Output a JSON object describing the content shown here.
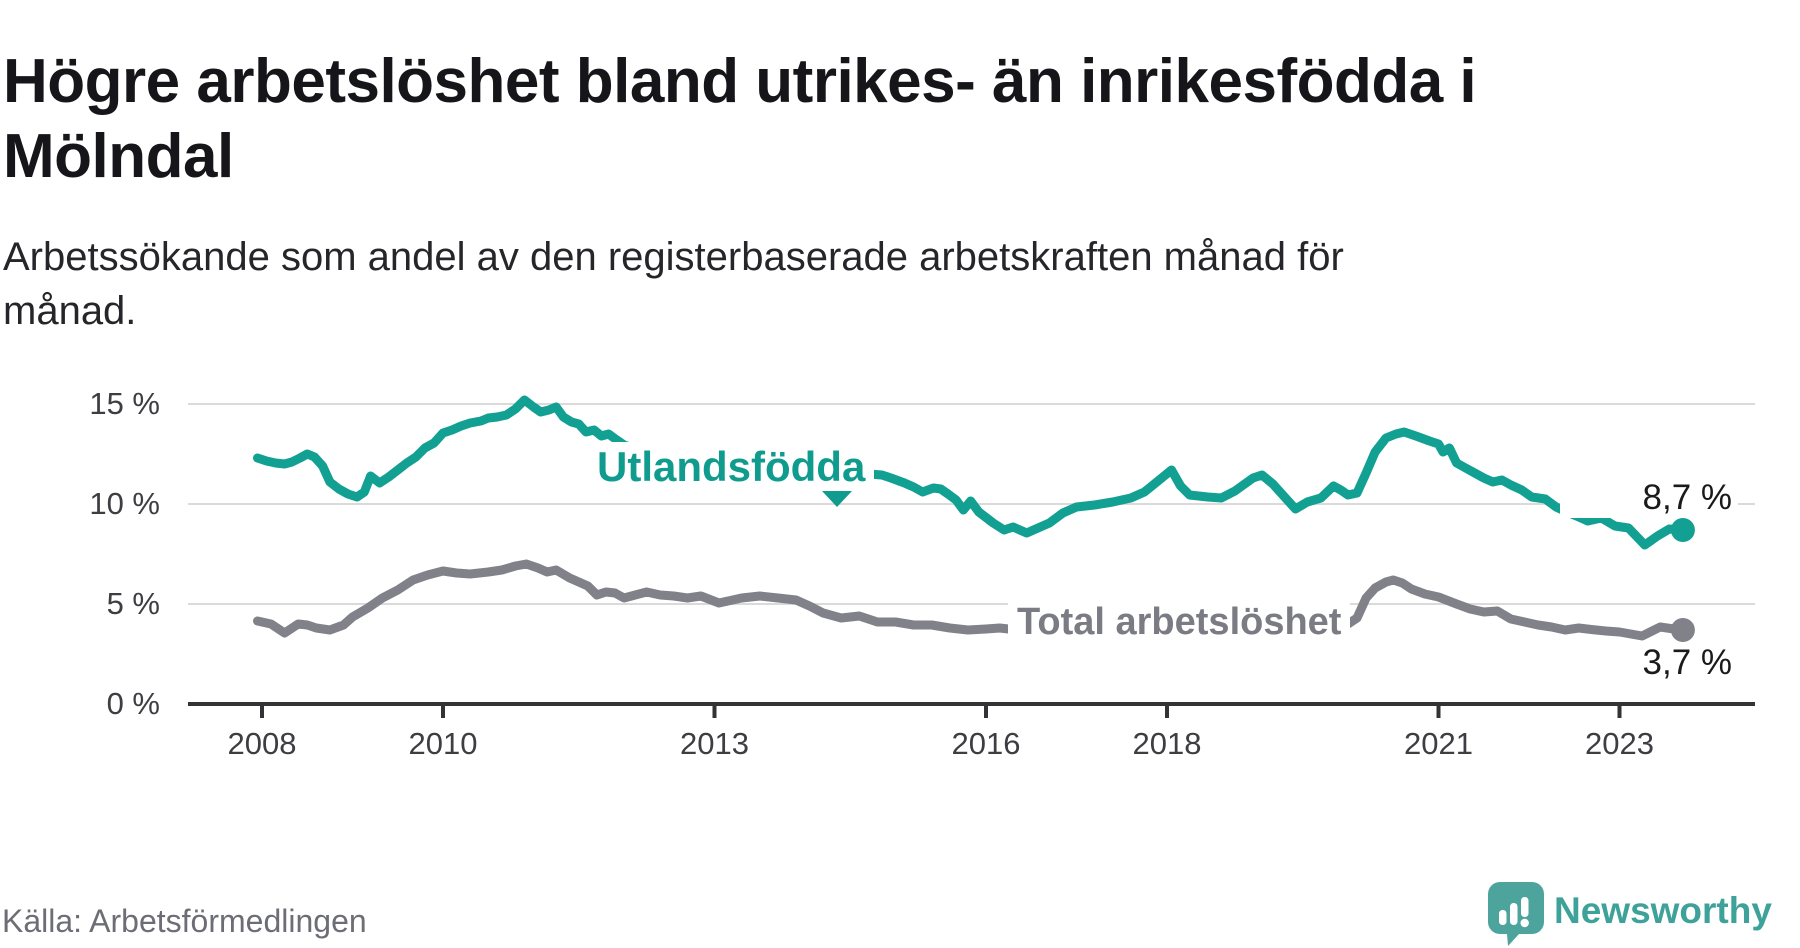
{
  "header": {
    "title": "Högre arbetslöshet bland utrikes- än inrikesfödda i\nMölndal",
    "subtitle": "Arbetssökande som andel av den registerbaserade arbetskraften månad för\nmånad."
  },
  "footer": {
    "source": "Källa: Arbetsförmedlingen",
    "brand": "Newsworthy"
  },
  "chart_data": {
    "type": "line",
    "title": "Högre arbetslöshet bland utrikes- än inrikesfödda i Mölndal",
    "subtitle": "Arbetssökande som andel av den registerbaserade arbetskraften månad för månad.",
    "grid": true,
    "legend_position": "inline-labels",
    "style": {
      "grid_color": "#dadada",
      "axis_color": "#333336",
      "background": "#ffffff"
    },
    "x_axis": {
      "label": "",
      "range": [
        2007.18,
        2024.5
      ],
      "ticks": [
        2008,
        2010,
        2013,
        2016,
        2018,
        2021,
        2023
      ]
    },
    "y_axis": {
      "label": "",
      "range": [
        0,
        16.4
      ],
      "unit": "%",
      "ticks": [
        {
          "value": 15,
          "label": "15 %",
          "gridline": true
        },
        {
          "value": 10,
          "label": "10 %",
          "gridline": true
        },
        {
          "value": 5,
          "label": "5 %",
          "gridline": true
        },
        {
          "value": 0,
          "label": "0 %",
          "gridline": false
        }
      ]
    },
    "series": [
      {
        "id": "utlandsfodda",
        "name": "Utlandsfödda",
        "color": "#12a093",
        "end_label": "8,7 %",
        "last_value": 8.7,
        "points": [
          [
            2007.95,
            12.3
          ],
          [
            2008.05,
            12.15
          ],
          [
            2008.15,
            12.05
          ],
          [
            2008.25,
            12.0
          ],
          [
            2008.33,
            12.1
          ],
          [
            2008.42,
            12.3
          ],
          [
            2008.5,
            12.5
          ],
          [
            2008.58,
            12.35
          ],
          [
            2008.67,
            11.9
          ],
          [
            2008.75,
            11.1
          ],
          [
            2008.85,
            10.75
          ],
          [
            2008.95,
            10.5
          ],
          [
            2009.05,
            10.35
          ],
          [
            2009.13,
            10.6
          ],
          [
            2009.2,
            11.4
          ],
          [
            2009.3,
            11.05
          ],
          [
            2009.4,
            11.35
          ],
          [
            2009.5,
            11.7
          ],
          [
            2009.6,
            12.05
          ],
          [
            2009.7,
            12.35
          ],
          [
            2009.8,
            12.8
          ],
          [
            2009.9,
            13.05
          ],
          [
            2010.0,
            13.55
          ],
          [
            2010.1,
            13.7
          ],
          [
            2010.2,
            13.9
          ],
          [
            2010.3,
            14.05
          ],
          [
            2010.42,
            14.15
          ],
          [
            2010.5,
            14.3
          ],
          [
            2010.6,
            14.35
          ],
          [
            2010.7,
            14.45
          ],
          [
            2010.8,
            14.75
          ],
          [
            2010.9,
            15.2
          ],
          [
            2011.0,
            14.85
          ],
          [
            2011.08,
            14.6
          ],
          [
            2011.17,
            14.7
          ],
          [
            2011.25,
            14.85
          ],
          [
            2011.33,
            14.35
          ],
          [
            2011.42,
            14.1
          ],
          [
            2011.5,
            14.0
          ],
          [
            2011.58,
            13.6
          ],
          [
            2011.67,
            13.7
          ],
          [
            2011.75,
            13.4
          ],
          [
            2011.83,
            13.5
          ],
          [
            2011.92,
            13.2
          ],
          [
            2012.0,
            12.95
          ],
          [
            2012.17,
            12.7
          ],
          [
            2012.33,
            12.55
          ],
          [
            2012.5,
            12.4
          ],
          [
            2012.67,
            12.3
          ],
          [
            2012.83,
            12.2
          ],
          [
            2013.0,
            12.1
          ],
          [
            2013.25,
            12.0
          ],
          [
            2013.5,
            11.9
          ],
          [
            2013.75,
            11.8
          ],
          [
            2014.0,
            11.7
          ],
          [
            2014.25,
            11.6
          ],
          [
            2014.5,
            11.55
          ],
          [
            2014.7,
            11.5
          ],
          [
            2014.85,
            11.45
          ],
          [
            2014.95,
            11.3
          ],
          [
            2015.1,
            11.05
          ],
          [
            2015.2,
            10.85
          ],
          [
            2015.3,
            10.6
          ],
          [
            2015.42,
            10.8
          ],
          [
            2015.5,
            10.75
          ],
          [
            2015.58,
            10.5
          ],
          [
            2015.67,
            10.2
          ],
          [
            2015.75,
            9.7
          ],
          [
            2015.83,
            10.15
          ],
          [
            2015.92,
            9.6
          ],
          [
            2016.08,
            9.05
          ],
          [
            2016.2,
            8.7
          ],
          [
            2016.3,
            8.85
          ],
          [
            2016.45,
            8.55
          ],
          [
            2016.6,
            8.85
          ],
          [
            2016.7,
            9.05
          ],
          [
            2016.85,
            9.55
          ],
          [
            2017.0,
            9.85
          ],
          [
            2017.2,
            9.95
          ],
          [
            2017.4,
            10.1
          ],
          [
            2017.6,
            10.3
          ],
          [
            2017.75,
            10.6
          ],
          [
            2017.9,
            11.15
          ],
          [
            2018.05,
            11.7
          ],
          [
            2018.15,
            10.9
          ],
          [
            2018.25,
            10.45
          ],
          [
            2018.45,
            10.35
          ],
          [
            2018.6,
            10.3
          ],
          [
            2018.75,
            10.65
          ],
          [
            2018.95,
            11.3
          ],
          [
            2019.05,
            11.45
          ],
          [
            2019.17,
            11.0
          ],
          [
            2019.3,
            10.35
          ],
          [
            2019.42,
            9.75
          ],
          [
            2019.55,
            10.1
          ],
          [
            2019.7,
            10.3
          ],
          [
            2019.84,
            10.9
          ],
          [
            2019.92,
            10.7
          ],
          [
            2020.0,
            10.45
          ],
          [
            2020.1,
            10.55
          ],
          [
            2020.2,
            11.55
          ],
          [
            2020.3,
            12.6
          ],
          [
            2020.42,
            13.3
          ],
          [
            2020.53,
            13.5
          ],
          [
            2020.62,
            13.6
          ],
          [
            2020.75,
            13.4
          ],
          [
            2020.9,
            13.15
          ],
          [
            2021.0,
            13.0
          ],
          [
            2021.05,
            12.6
          ],
          [
            2021.12,
            12.8
          ],
          [
            2021.2,
            12.05
          ],
          [
            2021.3,
            11.8
          ],
          [
            2021.4,
            11.55
          ],
          [
            2021.5,
            11.3
          ],
          [
            2021.6,
            11.1
          ],
          [
            2021.7,
            11.2
          ],
          [
            2021.8,
            10.95
          ],
          [
            2021.92,
            10.7
          ],
          [
            2022.03,
            10.35
          ],
          [
            2022.18,
            10.25
          ],
          [
            2022.3,
            9.85
          ],
          [
            2022.42,
            9.6
          ],
          [
            2022.55,
            9.35
          ],
          [
            2022.65,
            9.15
          ],
          [
            2022.8,
            9.3
          ],
          [
            2022.95,
            8.9
          ],
          [
            2023.1,
            8.8
          ],
          [
            2023.28,
            7.95
          ],
          [
            2023.42,
            8.4
          ],
          [
            2023.55,
            8.75
          ],
          [
            2023.7,
            8.7
          ]
        ]
      },
      {
        "id": "total",
        "name": "Total arbetslöshet",
        "color": "#81818a",
        "end_label": "3,7 %",
        "last_value": 3.7,
        "points": [
          [
            2007.95,
            4.15
          ],
          [
            2008.1,
            4.0
          ],
          [
            2008.25,
            3.55
          ],
          [
            2008.4,
            4.0
          ],
          [
            2008.5,
            3.95
          ],
          [
            2008.6,
            3.8
          ],
          [
            2008.75,
            3.7
          ],
          [
            2008.9,
            3.95
          ],
          [
            2009.0,
            4.35
          ],
          [
            2009.17,
            4.8
          ],
          [
            2009.33,
            5.3
          ],
          [
            2009.5,
            5.7
          ],
          [
            2009.67,
            6.2
          ],
          [
            2009.83,
            6.45
          ],
          [
            2010.0,
            6.65
          ],
          [
            2010.15,
            6.55
          ],
          [
            2010.3,
            6.5
          ],
          [
            2010.5,
            6.6
          ],
          [
            2010.65,
            6.7
          ],
          [
            2010.8,
            6.9
          ],
          [
            2010.92,
            7.0
          ],
          [
            2011.05,
            6.8
          ],
          [
            2011.15,
            6.6
          ],
          [
            2011.25,
            6.7
          ],
          [
            2011.4,
            6.3
          ],
          [
            2011.5,
            6.1
          ],
          [
            2011.6,
            5.9
          ],
          [
            2011.7,
            5.45
          ],
          [
            2011.8,
            5.6
          ],
          [
            2011.9,
            5.55
          ],
          [
            2012.0,
            5.3
          ],
          [
            2012.25,
            5.6
          ],
          [
            2012.4,
            5.45
          ],
          [
            2012.55,
            5.4
          ],
          [
            2012.7,
            5.3
          ],
          [
            2012.85,
            5.4
          ],
          [
            2013.05,
            5.05
          ],
          [
            2013.3,
            5.3
          ],
          [
            2013.5,
            5.4
          ],
          [
            2013.7,
            5.3
          ],
          [
            2013.9,
            5.2
          ],
          [
            2014.05,
            4.9
          ],
          [
            2014.2,
            4.55
          ],
          [
            2014.4,
            4.3
          ],
          [
            2014.6,
            4.4
          ],
          [
            2014.8,
            4.1
          ],
          [
            2015.0,
            4.1
          ],
          [
            2015.2,
            3.95
          ],
          [
            2015.4,
            3.95
          ],
          [
            2015.6,
            3.8
          ],
          [
            2015.8,
            3.7
          ],
          [
            2016.0,
            3.75
          ],
          [
            2016.15,
            3.8
          ],
          [
            2016.35,
            3.7
          ],
          [
            2016.7,
            3.6
          ],
          [
            2017.0,
            3.5
          ],
          [
            2017.5,
            3.45
          ],
          [
            2018.0,
            3.4
          ],
          [
            2018.5,
            3.4
          ],
          [
            2019.0,
            3.45
          ],
          [
            2019.5,
            3.55
          ],
          [
            2019.9,
            3.7
          ],
          [
            2020.1,
            4.3
          ],
          [
            2020.2,
            5.3
          ],
          [
            2020.3,
            5.8
          ],
          [
            2020.42,
            6.1
          ],
          [
            2020.5,
            6.2
          ],
          [
            2020.6,
            6.05
          ],
          [
            2020.7,
            5.75
          ],
          [
            2020.85,
            5.5
          ],
          [
            2021.0,
            5.35
          ],
          [
            2021.2,
            5.0
          ],
          [
            2021.35,
            4.75
          ],
          [
            2021.5,
            4.6
          ],
          [
            2021.65,
            4.65
          ],
          [
            2021.8,
            4.25
          ],
          [
            2021.95,
            4.1
          ],
          [
            2022.1,
            3.95
          ],
          [
            2022.25,
            3.85
          ],
          [
            2022.4,
            3.7
          ],
          [
            2022.55,
            3.8
          ],
          [
            2022.7,
            3.72
          ],
          [
            2022.85,
            3.65
          ],
          [
            2023.0,
            3.6
          ],
          [
            2023.25,
            3.4
          ],
          [
            2023.45,
            3.85
          ],
          [
            2023.6,
            3.75
          ],
          [
            2023.7,
            3.7
          ]
        ]
      }
    ]
  }
}
